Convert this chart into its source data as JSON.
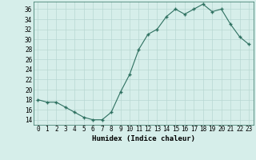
{
  "x": [
    0,
    1,
    2,
    3,
    4,
    5,
    6,
    7,
    8,
    9,
    10,
    11,
    12,
    13,
    14,
    15,
    16,
    17,
    18,
    19,
    20,
    21,
    22,
    23
  ],
  "y": [
    18,
    17.5,
    17.5,
    16.5,
    15.5,
    14.5,
    14,
    14,
    15.5,
    19.5,
    23,
    28,
    31,
    32,
    34.5,
    36,
    35,
    36,
    37,
    35.5,
    36,
    33,
    30.5,
    29
  ],
  "xlabel": "Humidex (Indice chaleur)",
  "xlim_min": -0.5,
  "xlim_max": 23.5,
  "ylim_min": 13,
  "ylim_max": 37.5,
  "yticks": [
    14,
    16,
    18,
    20,
    22,
    24,
    26,
    28,
    30,
    32,
    34,
    36
  ],
  "xticks": [
    0,
    1,
    2,
    3,
    4,
    5,
    6,
    7,
    8,
    9,
    10,
    11,
    12,
    13,
    14,
    15,
    16,
    17,
    18,
    19,
    20,
    21,
    22,
    23
  ],
  "line_color": "#2e7060",
  "marker": "P",
  "bg_color": "#d6eeea",
  "grid_color": "#b8d8d2",
  "tick_fontsize": 5.5,
  "label_fontsize": 6.5
}
